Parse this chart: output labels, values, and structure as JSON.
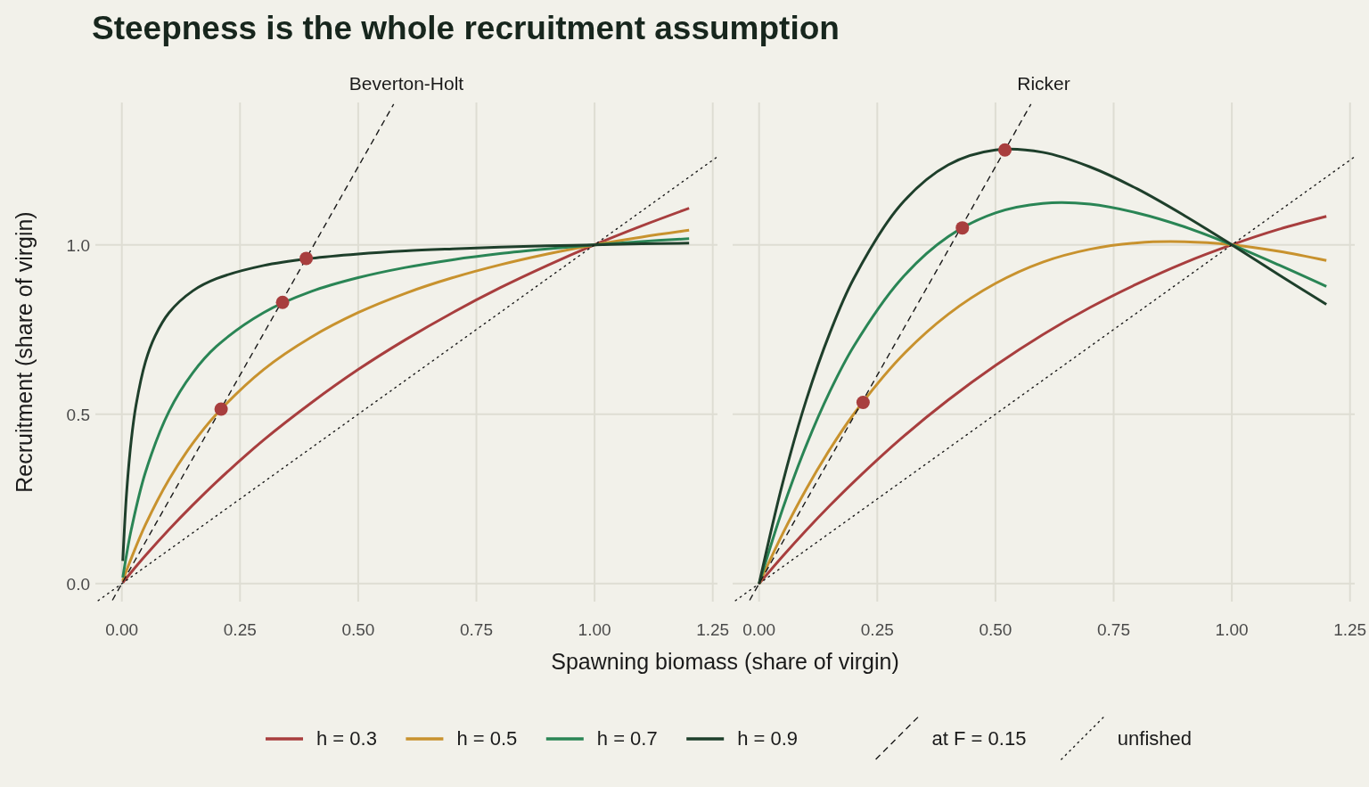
{
  "chart_data": [
    {
      "type": "line",
      "title": "Steepness is the whole recruitment assumption",
      "subtitle": "Beverton-Holt",
      "xlabel": "Spawning biomass (share of virgin)",
      "ylabel": "Recruitment (share of virgin)",
      "x": [
        0.002,
        0.01,
        0.02,
        0.05,
        0.1,
        0.15,
        0.2,
        0.3,
        0.4,
        0.5,
        0.6,
        0.7,
        0.8,
        0.9,
        1.0,
        1.1,
        1.2
      ],
      "series": [
        {
          "name": "h = 0.3",
          "color": "#a83e3e",
          "values": [
            0.003,
            0.017,
            0.034,
            0.083,
            0.16,
            0.232,
            0.3,
            0.424,
            0.533,
            0.632,
            0.72,
            0.8,
            0.873,
            0.939,
            1.0,
            1.056,
            1.108
          ]
        },
        {
          "name": "h = 0.5",
          "color": "#c8922e",
          "values": [
            0.008,
            0.039,
            0.075,
            0.174,
            0.308,
            0.414,
            0.5,
            0.632,
            0.727,
            0.8,
            0.857,
            0.903,
            0.941,
            0.973,
            1.0,
            1.023,
            1.043
          ]
        },
        {
          "name": "h = 0.7",
          "color": "#2a8555",
          "values": [
            0.018,
            0.086,
            0.16,
            0.329,
            0.509,
            0.622,
            0.7,
            0.8,
            0.862,
            0.903,
            0.933,
            0.956,
            0.974,
            0.988,
            1.0,
            1.01,
            1.018
          ]
        },
        {
          "name": "h = 0.9",
          "color": "#1e3f2b",
          "x": [
            0.002,
            0.01,
            0.02,
            0.03,
            0.05,
            0.07,
            0.1,
            0.15,
            0.2,
            0.3,
            0.4,
            0.5,
            0.6,
            0.7,
            0.8,
            0.9,
            1.0,
            1.1,
            1.2
          ],
          "values": [
            0.067,
            0.267,
            0.424,
            0.527,
            0.655,
            0.73,
            0.8,
            0.864,
            0.9,
            0.939,
            0.96,
            0.973,
            0.982,
            0.988,
            0.993,
            0.997,
            1.0,
            1.003,
            1.005
          ]
        },
        {
          "name": "at F = 0.15",
          "type": "line",
          "line_style": "dashed",
          "color": "#1a1a1a",
          "x": [
            -0.02,
            0.575
          ],
          "values": [
            -0.049,
            1.415
          ]
        },
        {
          "name": "unfished",
          "type": "line",
          "line_style": "dotted",
          "color": "#1a1a1a",
          "x": [
            -0.05,
            1.26
          ],
          "values": [
            -0.05,
            1.26
          ]
        },
        {
          "type": "scatter",
          "marker": "circle",
          "color": "#a83e3e",
          "x": [
            0.21,
            0.34,
            0.39
          ],
          "values": [
            0.515,
            0.83,
            0.96
          ]
        }
      ],
      "xlim": [
        -0.056,
        1.26
      ],
      "ylim": [
        -0.053,
        1.42
      ],
      "xticks": [
        {
          "value": 0,
          "label": "0.00"
        },
        {
          "value": 0.25,
          "label": "0.25"
        },
        {
          "value": 0.5,
          "label": "0.50"
        },
        {
          "value": 0.75,
          "label": "0.75"
        },
        {
          "value": 1,
          "label": "1.00"
        },
        {
          "value": 1.25,
          "label": "1.25"
        }
      ],
      "yticks": [
        {
          "value": 0,
          "label": "0.0"
        },
        {
          "value": 0.5,
          "label": "0.5"
        },
        {
          "value": 1,
          "label": "1.0"
        }
      ],
      "grid": true,
      "legend": "bottom"
    },
    {
      "type": "line",
      "subtitle": "Ricker",
      "x": [
        0,
        0.05,
        0.1,
        0.15,
        0.2,
        0.3,
        0.4,
        0.5,
        0.6,
        0.7,
        0.8,
        0.9,
        1.0,
        1.1,
        1.2
      ],
      "series": [
        {
          "color": "#a83e3e",
          "values": [
            0,
            0.081,
            0.158,
            0.231,
            0.3,
            0.428,
            0.542,
            0.644,
            0.735,
            0.815,
            0.885,
            0.947,
            1.0,
            1.046,
            1.084
          ]
        },
        {
          "color": "#c8922e",
          "values": [
            0,
            0.148,
            0.28,
            0.397,
            0.5,
            0.669,
            0.795,
            0.886,
            0.949,
            0.987,
            1.006,
            1.009,
            1.0,
            0.981,
            0.954
          ]
        },
        {
          "color": "#2a8555",
          "values": [
            0,
            0.221,
            0.409,
            0.568,
            0.7,
            0.898,
            1.024,
            1.094,
            1.122,
            1.12,
            1.094,
            1.053,
            1.0,
            0.94,
            0.877
          ]
        },
        {
          "color": "#1e3f2b",
          "values": [
            0,
            0.298,
            0.543,
            0.741,
            0.9,
            1.119,
            1.236,
            1.28,
            1.273,
            1.23,
            1.165,
            1.086,
            1.0,
            0.911,
            0.824
          ]
        },
        {
          "type": "line",
          "line_style": "dashed",
          "color": "#1a1a1a",
          "x": [
            -0.02,
            0.575
          ],
          "values": [
            -0.049,
            1.415
          ]
        },
        {
          "type": "line",
          "line_style": "dotted",
          "color": "#1a1a1a",
          "x": [
            -0.05,
            1.26
          ],
          "values": [
            -0.05,
            1.26
          ]
        },
        {
          "type": "scatter",
          "marker": "circle",
          "color": "#a83e3e",
          "x": [
            0.22,
            0.43,
            0.52
          ],
          "values": [
            0.535,
            1.05,
            1.28
          ]
        }
      ],
      "xlim": [
        -0.056,
        1.26
      ],
      "ylim": [
        -0.053,
        1.42
      ],
      "xticks": [
        {
          "value": 0,
          "label": "0.00"
        },
        {
          "value": 0.25,
          "label": "0.25"
        },
        {
          "value": 0.5,
          "label": "0.50"
        },
        {
          "value": 0.75,
          "label": "0.75"
        },
        {
          "value": 1,
          "label": "1.00"
        },
        {
          "value": 1.25,
          "label": "1.25"
        }
      ],
      "yticks": [
        {
          "value": 0,
          "label": null
        },
        {
          "value": 0.5,
          "label": null
        },
        {
          "value": 1,
          "label": null
        }
      ],
      "grid": true,
      "tick_labels": "x"
    }
  ]
}
